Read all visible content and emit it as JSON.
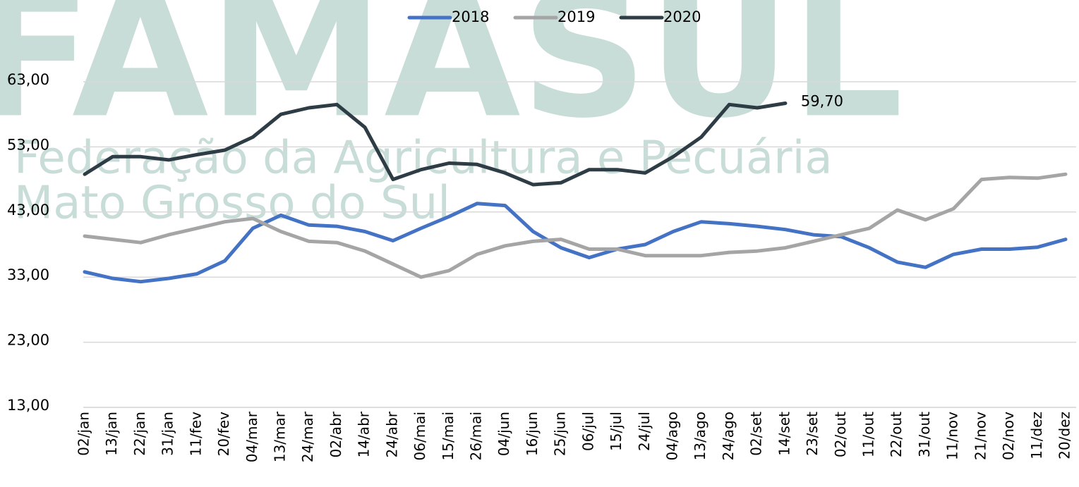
{
  "chart_data": {
    "type": "line",
    "watermark": {
      "title": "FAMASUL",
      "line1": "Federação da Agricultura e Pecuária",
      "line2": "Mato Grosso do Sul"
    },
    "categories": [
      "02/jan",
      "13/jan",
      "22/jan",
      "31/jan",
      "11/fev",
      "20/fev",
      "04/mar",
      "13/mar",
      "24/mar",
      "02/abr",
      "14/abr",
      "24/abr",
      "06/mai",
      "15/mai",
      "26/mai",
      "04/jun",
      "16/jun",
      "25/jun",
      "06/jul",
      "15/jul",
      "24/jul",
      "04/ago",
      "13/ago",
      "24/ago",
      "02/set",
      "14/set",
      "23/set",
      "02/out",
      "11/out",
      "22/out",
      "31/out",
      "11/nov",
      "21/nov",
      "02/nov",
      "11/dez",
      "20/dez"
    ],
    "series": [
      {
        "name": "2018",
        "color": "#4472c4",
        "values": [
          33.8,
          32.8,
          32.3,
          32.8,
          33.5,
          35.5,
          40.5,
          42.5,
          41,
          40.8,
          40,
          38.6,
          40.5,
          42.3,
          44.3,
          44,
          40,
          37.5,
          36,
          37.3,
          38,
          40,
          41.5,
          41.2,
          40.8,
          40.3,
          39.5,
          39.2,
          37.5,
          35.3,
          34.5,
          36.5,
          37.3,
          37.3,
          37.6,
          38.8
        ]
      },
      {
        "name": "2019",
        "color": "#a5a5a5",
        "values": [
          39.3,
          38.8,
          38.3,
          39.5,
          40.5,
          41.5,
          42,
          40,
          38.5,
          38.3,
          37,
          35,
          33,
          34,
          36.5,
          37.8,
          38.5,
          38.8,
          37.3,
          37.3,
          36.3,
          36.3,
          36.3,
          36.8,
          37,
          37.5,
          38.5,
          39.5,
          40.5,
          43.3,
          41.8,
          43.5,
          48,
          48.3,
          48.2,
          48.8
        ]
      },
      {
        "name": "2020",
        "color": "#2e3d45",
        "values": [
          48.8,
          51.5,
          51.5,
          51,
          51.8,
          52.5,
          54.5,
          58,
          59,
          59.5,
          56,
          48,
          49.5,
          50.5,
          50.3,
          49,
          47.2,
          47.5,
          49.5,
          49.5,
          49,
          51.5,
          54.5,
          59.5,
          59,
          59.7,
          null,
          null,
          null,
          null,
          null,
          null,
          null,
          null,
          null,
          null
        ],
        "value_labels": [
          null,
          null,
          null,
          null,
          null,
          null,
          null,
          null,
          null,
          null,
          null,
          null,
          null,
          null,
          null,
          null,
          null,
          null,
          null,
          null,
          null,
          null,
          null,
          null,
          null,
          "59,70",
          null,
          null,
          null,
          null,
          null,
          null,
          null,
          null,
          null,
          null
        ]
      }
    ],
    "ylim": [
      13,
      63
    ],
    "yticks": [
      {
        "value": 13,
        "label": "13,00"
      },
      {
        "value": 23,
        "label": "23,00"
      },
      {
        "value": 33,
        "label": "33,00"
      },
      {
        "value": 43,
        "label": "43,00"
      },
      {
        "value": 53,
        "label": "53,00"
      },
      {
        "value": 63,
        "label": "63,00"
      }
    ],
    "grid": true,
    "legend": "top"
  }
}
